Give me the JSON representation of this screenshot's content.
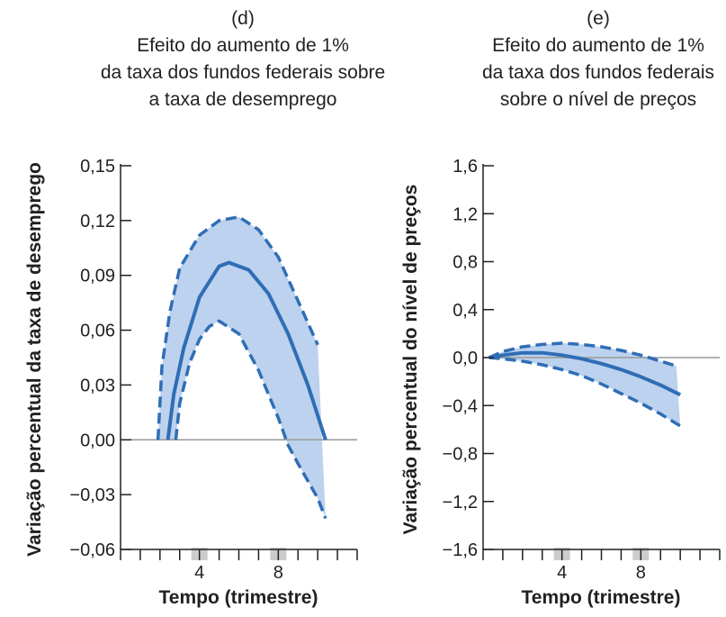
{
  "chart_data": [
    {
      "type": "line",
      "panel_label": "(d)",
      "title_lines": [
        "Efeito do aumento de 1%",
        "da taxa dos fundos federais sobre",
        "a taxa de desemprego"
      ],
      "xlabel": "Tempo (trimestre)",
      "ylabel": "Variação percentual da taxa de desemprego",
      "ylim": [
        -0.06,
        0.15
      ],
      "yticks": [
        -0.06,
        -0.03,
        0.0,
        0.03,
        0.06,
        0.09,
        0.12,
        0.15
      ],
      "ytick_labels": [
        "−0,06",
        "−0,03",
        "0,00",
        "0,03",
        "0,06",
        "0,09",
        "0,12",
        "0,15"
      ],
      "xlim": [
        0,
        12
      ],
      "xticks": [
        4,
        8
      ],
      "xtick_labels": [
        "4",
        "8"
      ],
      "highlight_bands": [
        4,
        8
      ],
      "fill_color": "#bcd2ee",
      "line_color": "#2f6eb5",
      "zero_line_color": "#999999",
      "series": [
        {
          "role": "estimate",
          "style": "solid",
          "x": [
            2.4,
            2.7,
            3.2,
            4.0,
            5.0,
            5.5,
            6.5,
            7.5,
            8.5,
            9.5,
            10.4
          ],
          "y": [
            0.0,
            0.025,
            0.05,
            0.078,
            0.095,
            0.097,
            0.093,
            0.08,
            0.058,
            0.03,
            0.0
          ]
        },
        {
          "role": "upper_bound",
          "style": "dashed",
          "x": [
            1.9,
            2.1,
            2.5,
            3.0,
            4.0,
            5.0,
            6.0,
            7.0,
            8.0,
            9.0,
            10.0
          ],
          "y": [
            0.0,
            0.04,
            0.07,
            0.094,
            0.112,
            0.12,
            0.122,
            0.115,
            0.1,
            0.076,
            0.052
          ]
        },
        {
          "role": "lower_bound",
          "style": "dashed",
          "x": [
            2.8,
            3.0,
            3.5,
            4.0,
            4.5,
            5.0,
            6.0,
            7.0,
            8.0,
            8.5,
            9.0,
            10.0,
            10.4
          ],
          "y": [
            0.0,
            0.02,
            0.042,
            0.055,
            0.062,
            0.065,
            0.058,
            0.038,
            0.012,
            -0.003,
            -0.013,
            -0.032,
            -0.043
          ]
        }
      ]
    },
    {
      "type": "line",
      "panel_label": "(e)",
      "title_lines": [
        "Efeito do aumento de 1%",
        "da taxa dos fundos federais",
        "sobre o nível de preços"
      ],
      "xlabel": "Tempo (trimestre)",
      "ylabel": "Variação percentual do nível de preços",
      "ylim": [
        -1.6,
        1.6
      ],
      "yticks": [
        -1.6,
        -1.2,
        -0.8,
        -0.4,
        0.0,
        0.4,
        0.8,
        1.2,
        1.6
      ],
      "ytick_labels": [
        "−1,6",
        "−1,2",
        "−0,8",
        "−0,4",
        "0,0",
        "0,4",
        "0,8",
        "1,2",
        "1,6"
      ],
      "xlim": [
        0,
        12
      ],
      "xticks": [
        4,
        8
      ],
      "xtick_labels": [
        "4",
        "8"
      ],
      "highlight_bands": [
        4,
        8
      ],
      "fill_color": "#bcd2ee",
      "line_color": "#2f6eb5",
      "zero_line_color": "#999999",
      "series": [
        {
          "role": "estimate",
          "style": "solid",
          "x": [
            0.3,
            1.0,
            2.0,
            3.0,
            4.0,
            5.0,
            6.0,
            7.0,
            8.0,
            9.0,
            10.0
          ],
          "y": [
            0.0,
            0.02,
            0.04,
            0.04,
            0.02,
            -0.01,
            -0.05,
            -0.1,
            -0.16,
            -0.23,
            -0.31
          ]
        },
        {
          "role": "upper_bound",
          "style": "dashed",
          "x": [
            0.3,
            1.0,
            2.0,
            3.0,
            4.0,
            5.0,
            6.0,
            7.0,
            8.0,
            9.0,
            9.8
          ],
          "y": [
            0.0,
            0.05,
            0.09,
            0.11,
            0.12,
            0.11,
            0.09,
            0.06,
            0.02,
            -0.03,
            -0.07
          ]
        },
        {
          "role": "lower_bound",
          "style": "dashed",
          "x": [
            0.3,
            1.0,
            2.0,
            3.0,
            4.0,
            5.0,
            6.0,
            7.0,
            8.0,
            9.0,
            10.0
          ],
          "y": [
            0.0,
            -0.01,
            -0.03,
            -0.06,
            -0.1,
            -0.15,
            -0.22,
            -0.3,
            -0.38,
            -0.47,
            -0.57
          ]
        }
      ]
    }
  ]
}
